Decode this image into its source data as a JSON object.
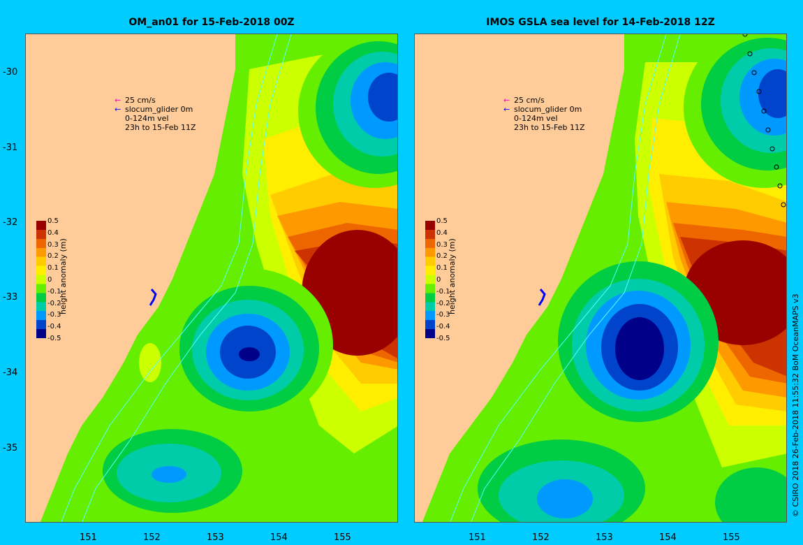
{
  "panels": [
    {
      "title": "OM_an01 for 15-Feb-2018 00Z",
      "legend": {
        "scale": "25 cm/s",
        "glider": "slocum_glider 0m",
        "vel": "0-124m vel",
        "window": "23h to 15-Feb 11Z"
      }
    },
    {
      "title": "IMOS GSLA sea level  for 14-Feb-2018 12Z",
      "legend": {
        "scale": "25 cm/s",
        "glider": "slocum_glider 0m",
        "vel": "0-124m vel",
        "window": "23h to 15-Feb 11Z"
      }
    }
  ],
  "lat_ticks": [
    "-30",
    "-31",
    "-32",
    "-33",
    "-34",
    "-35"
  ],
  "lon_ticks": [
    "151",
    "152",
    "153",
    "154",
    "155"
  ],
  "colorbar": {
    "label": "height anomaly (m)",
    "ticks": [
      "0.5",
      "0.4",
      "0.3",
      "0.2",
      "0.1",
      "0",
      "-0.1",
      "-0.2",
      "-0.3",
      "-0.4",
      "-0.5"
    ],
    "colors": [
      "#990000",
      "#cc3300",
      "#ee6600",
      "#ff9900",
      "#ffcc00",
      "#ffee00",
      "#ccff00",
      "#66ee00",
      "#00cc44",
      "#00ccaa",
      "#0099ff",
      "#0044cc",
      "#000088"
    ]
  },
  "credit": "© CSIRO 2018   26-Feb-2018 11:55:32 BoM OceanMAPS v3",
  "colors": {
    "background": "#00ccff",
    "land": "#ffcc99",
    "arrow_magenta": "#ff00cc",
    "arrow_blue": "#0000ff"
  },
  "icons": [
    "magenta-arrow-icon",
    "blue-arrow-icon",
    "glider-track-icon"
  ]
}
